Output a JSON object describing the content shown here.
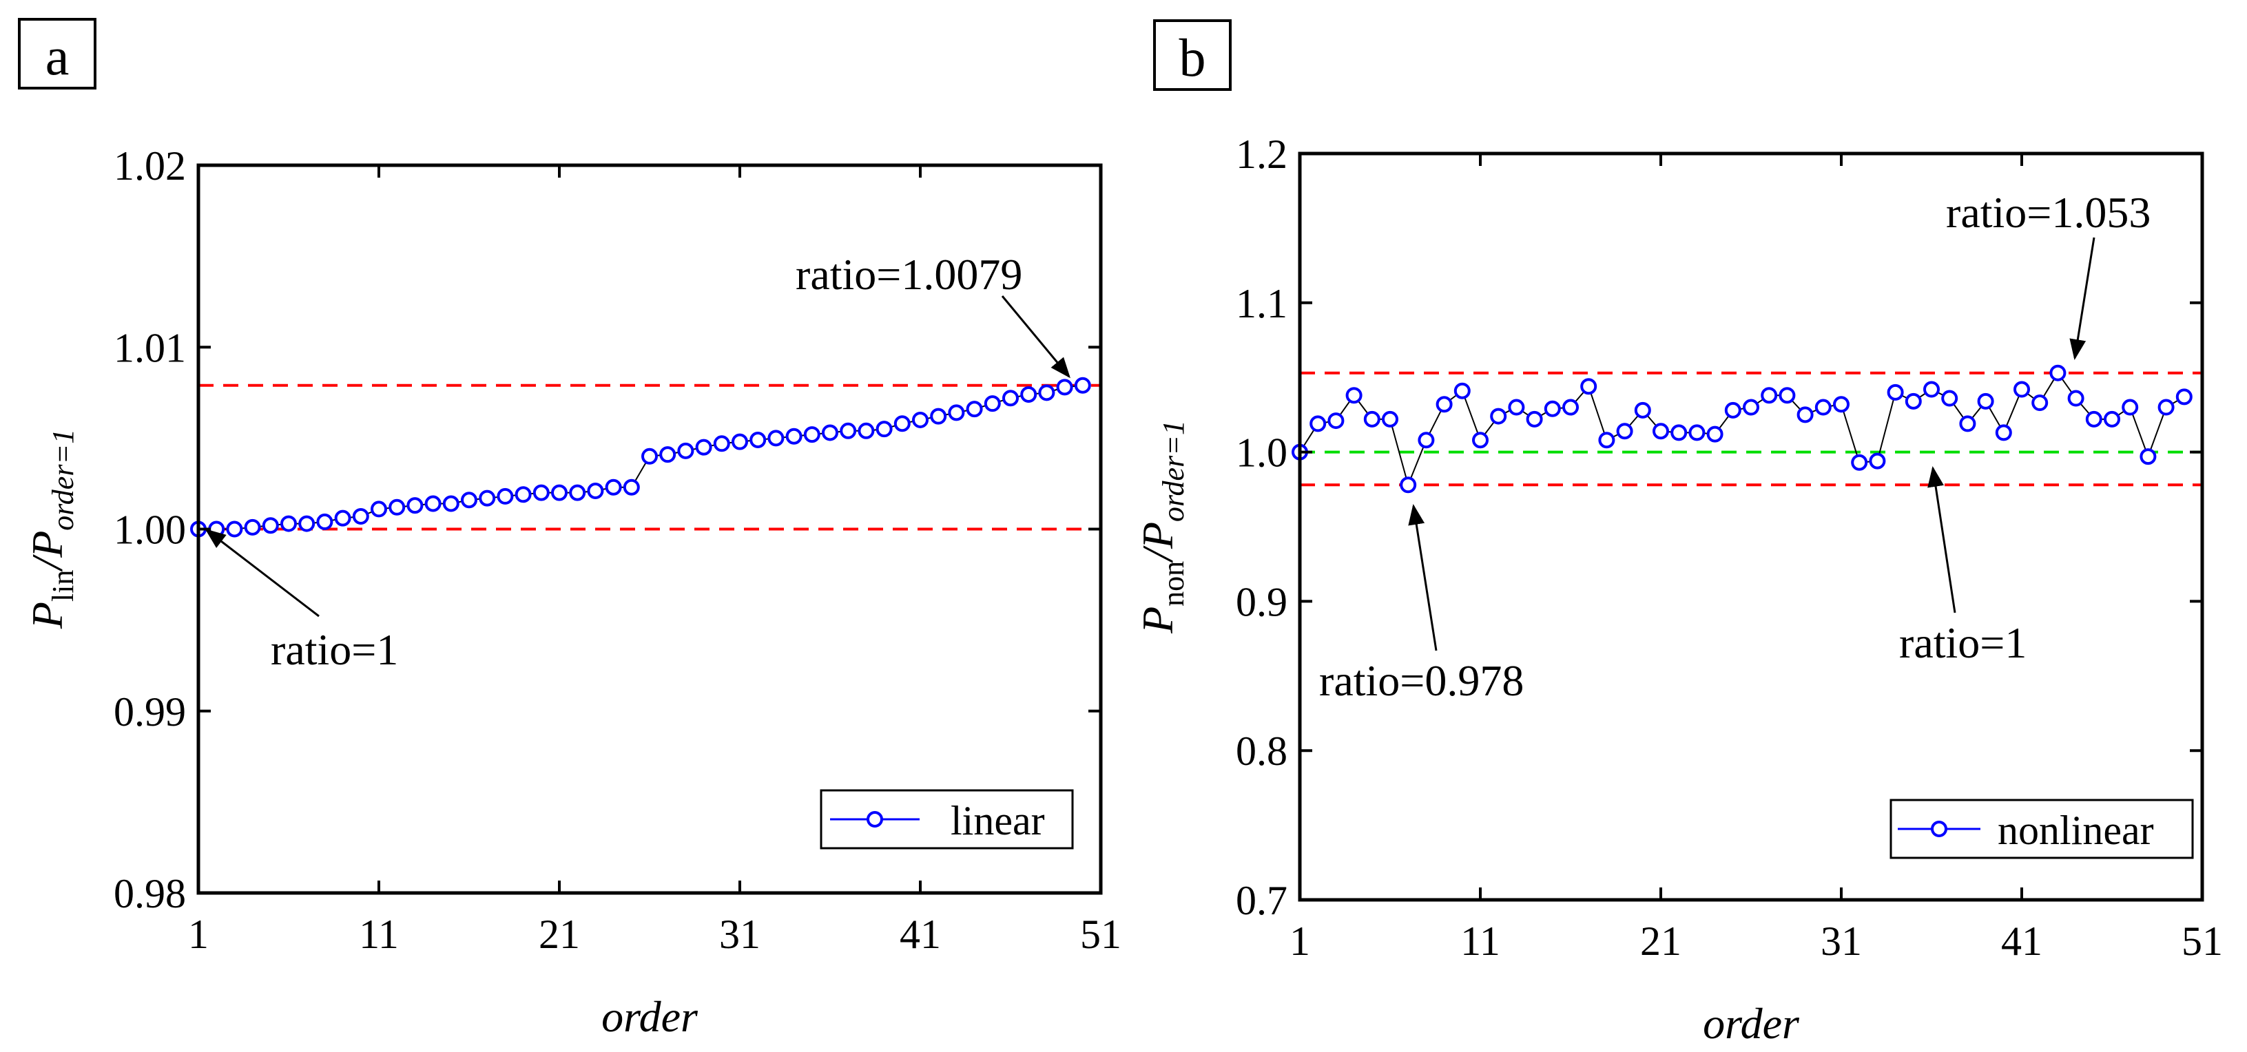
{
  "chart_data": [
    {
      "panel_label": "a",
      "type": "line",
      "xlabel": "order",
      "ylabel_main": "P",
      "ylabel_sub_main": "lin",
      "ylabel_divider": "/P",
      "ylabel_sub_ref": "order=1",
      "xlim": [
        1,
        51
      ],
      "ylim": [
        0.98,
        1.02
      ],
      "xticks": [
        1,
        11,
        21,
        31,
        41,
        51
      ],
      "yticks": [
        0.98,
        0.99,
        1.0,
        1.01,
        1.02
      ],
      "ytick_labels": [
        "0.98",
        "0.99",
        "1.00",
        "1.01",
        "1.02"
      ],
      "legend": "linear",
      "legend_position": "bottom-right",
      "series": [
        {
          "name": "linear",
          "color": "#0000ff",
          "x": [
            1,
            2,
            3,
            4,
            5,
            6,
            7,
            8,
            9,
            10,
            11,
            12,
            13,
            14,
            15,
            16,
            17,
            18,
            19,
            20,
            21,
            22,
            23,
            24,
            25,
            26,
            27,
            28,
            29,
            30,
            31,
            32,
            33,
            34,
            35,
            36,
            37,
            38,
            39,
            40,
            41,
            42,
            43,
            44,
            45,
            46,
            47,
            48,
            49,
            50
          ],
          "values": [
            1.0,
            1.0,
            1.0,
            1.0001,
            1.0002,
            1.0003,
            1.0003,
            1.0004,
            1.0006,
            1.0007,
            1.0011,
            1.0012,
            1.0013,
            1.0014,
            1.0014,
            1.0016,
            1.0017,
            1.0018,
            1.0019,
            1.002,
            1.002,
            1.002,
            1.0021,
            1.0023,
            1.0023,
            1.004,
            1.0041,
            1.0043,
            1.0045,
            1.0047,
            1.0048,
            1.0049,
            1.005,
            1.0051,
            1.0052,
            1.0053,
            1.0054,
            1.0054,
            1.0055,
            1.0058,
            1.006,
            1.0062,
            1.0064,
            1.0066,
            1.0069,
            1.0072,
            1.0074,
            1.0075,
            1.0078,
            1.0079
          ]
        }
      ],
      "reference_lines": [
        {
          "y": 1.0079,
          "color": "#ff0000",
          "style": "dashed"
        },
        {
          "y": 1.0,
          "color": "#ff0000",
          "style": "dashed"
        }
      ],
      "annotations": [
        {
          "text": "ratio=1.0079",
          "target_x": 50,
          "target_y": 1.0079
        },
        {
          "text": "ratio=1",
          "target_x": 1,
          "target_y": 1.0
        }
      ]
    },
    {
      "panel_label": "b",
      "type": "line",
      "xlabel": "order",
      "ylabel_main": "P",
      "ylabel_sub_main": "non",
      "ylabel_divider": "/P",
      "ylabel_sub_ref": "order=1",
      "xlim": [
        1,
        51
      ],
      "ylim": [
        0.7,
        1.2
      ],
      "xticks": [
        1,
        11,
        21,
        31,
        41,
        51
      ],
      "yticks": [
        0.7,
        0.8,
        0.9,
        1.0,
        1.1,
        1.2
      ],
      "ytick_labels": [
        "0.7",
        "0.8",
        "0.9",
        "1.0",
        "1.1",
        "1.2"
      ],
      "legend": "nonlinear",
      "legend_position": "bottom-right",
      "series": [
        {
          "name": "nonlinear",
          "color": "#0000ff",
          "x": [
            1,
            2,
            3,
            4,
            5,
            6,
            7,
            8,
            9,
            10,
            11,
            12,
            13,
            14,
            15,
            16,
            17,
            18,
            19,
            20,
            21,
            22,
            23,
            24,
            25,
            26,
            27,
            28,
            29,
            30,
            31,
            32,
            33,
            34,
            35,
            36,
            37,
            38,
            39,
            40,
            41,
            42,
            43,
            44,
            45,
            46,
            47,
            48,
            49,
            50
          ],
          "values": [
            1.0,
            1.019,
            1.021,
            1.038,
            1.022,
            1.022,
            0.978,
            1.008,
            1.032,
            1.041,
            1.008,
            1.024,
            1.03,
            1.022,
            1.029,
            1.03,
            1.044,
            1.008,
            1.014,
            1.028,
            1.014,
            1.013,
            1.013,
            1.012,
            1.028,
            1.03,
            1.038,
            1.038,
            1.025,
            1.03,
            1.032,
            0.993,
            0.994,
            1.04,
            1.034,
            1.042,
            1.036,
            1.019,
            1.034,
            1.013,
            1.042,
            1.033,
            1.053,
            1.036,
            1.022,
            1.022,
            1.03,
            0.997,
            1.03,
            1.037
          ]
        }
      ],
      "reference_lines": [
        {
          "y": 1.053,
          "color": "#ff0000",
          "style": "dashed"
        },
        {
          "y": 0.978,
          "color": "#ff0000",
          "style": "dashed"
        },
        {
          "y": 1.0,
          "color": "#00dd00",
          "style": "dashed"
        }
      ],
      "annotations": [
        {
          "text": "ratio=1.053",
          "target_x": 43,
          "target_y": 1.053
        },
        {
          "text": "ratio=0.978",
          "target_x": 7,
          "target_y": 0.978
        },
        {
          "text": "ratio=1",
          "target_x": 35,
          "target_y": 1.0
        }
      ]
    }
  ]
}
